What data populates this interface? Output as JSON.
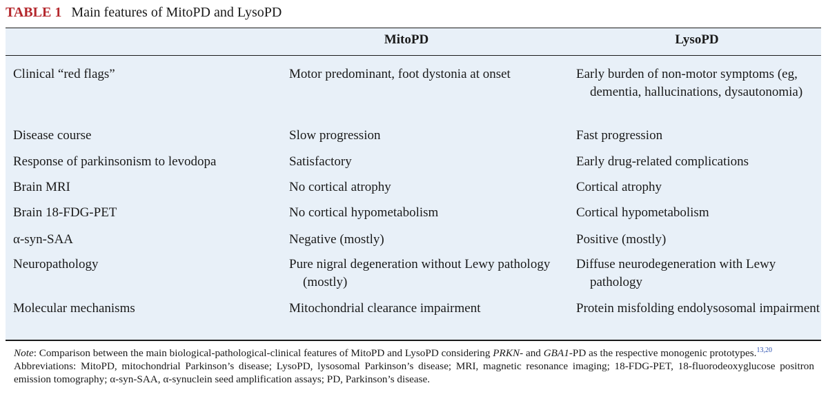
{
  "caption": {
    "label": "TABLE 1",
    "title": "Main features of MitoPD and LysoPD"
  },
  "table": {
    "headers": [
      "",
      "MitoPD",
      "LysoPD"
    ],
    "rows": [
      {
        "feature": "Clinical “red flags”",
        "mito": "Motor predominant, foot dystonia at onset",
        "lyso": "Early burden of non-motor symptoms (eg, dementia, hallucinations, dysautonomia)"
      },
      {
        "feature": "Disease course",
        "mito": "Slow progression",
        "lyso": "Fast progression"
      },
      {
        "feature": "Response of parkinsonism to levodopa",
        "mito": "Satisfactory",
        "lyso": "Early drug-related complications"
      },
      {
        "feature": "Brain MRI",
        "mito": "No cortical atrophy",
        "lyso": "Cortical atrophy"
      },
      {
        "feature": "Brain 18-FDG-PET",
        "mito": "No cortical hypometabolism",
        "lyso": "Cortical hypometabolism"
      },
      {
        "feature": "α-syn-SAA",
        "mito": "Negative (mostly)",
        "lyso": "Positive (mostly)"
      },
      {
        "feature": "Neuropathology",
        "mito": "Pure nigral degeneration without Lewy pathology (mostly)",
        "lyso": "Diffuse neurodegeneration with Lewy pathology"
      },
      {
        "feature": "Molecular mechanisms",
        "mito": "Mitochondrial clearance impairment",
        "lyso": "Protein misfolding endolysosomal impairment"
      }
    ]
  },
  "notes": {
    "note_label": "Note",
    "note_text_1": ": Comparison between the main biological-pathological-clinical features of MitoPD and LysoPD considering ",
    "gene_1": "PRKN",
    "note_text_2": "- and ",
    "gene_2": "GBA1",
    "note_text_3": "-PD as the respective monogenic prototypes.",
    "note_refs": "13,20",
    "abbreviations": "Abbreviations: MitoPD, mitochondrial Parkinson’s disease; LysoPD, lysosomal Parkinson’s disease; MRI, magnetic resonance imaging; 18-FDG-PET, 18-fluorodeoxyglucose positron emission tomography; α-syn-SAA, α-synuclein seed amplification assays; PD, Parkinson’s disease."
  },
  "colors": {
    "caption_label": "#b4282d",
    "table_background": "#e8f0f8",
    "reference_link": "#2a4fb0"
  }
}
